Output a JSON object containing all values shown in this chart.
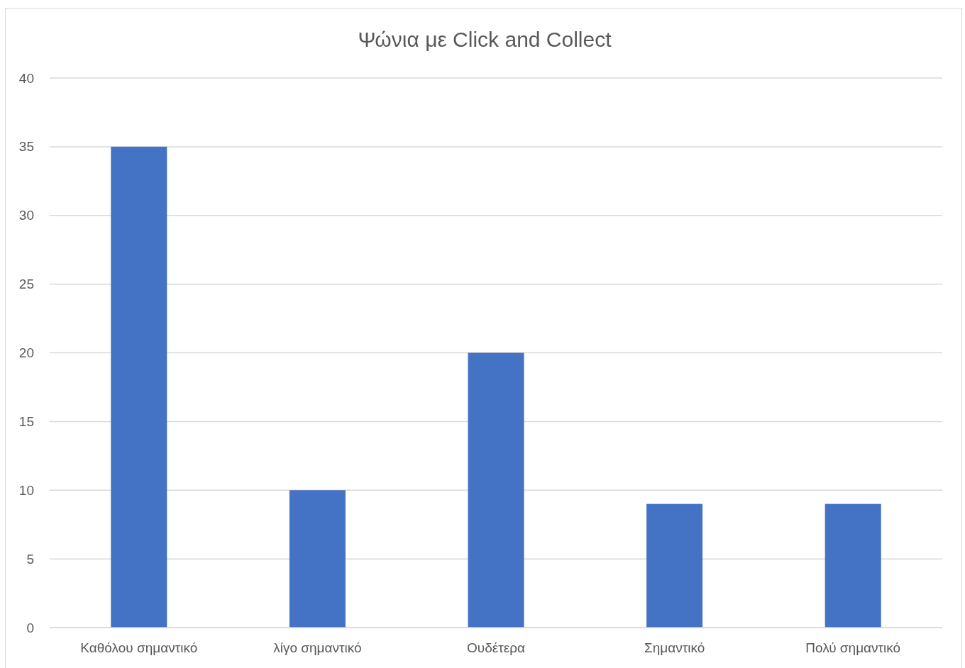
{
  "chart_data": {
    "type": "bar",
    "title": "Ψώνια με Click and Collect",
    "categories": [
      "Καθόλου σημαντικό",
      "λίγο σημαντικό",
      "Ουδέτερα",
      "Σημαντικό",
      "Πολύ σημαντικό"
    ],
    "values": [
      35,
      10,
      20,
      9,
      9
    ],
    "color": "#4472c4",
    "ylim": [
      0,
      40
    ],
    "yticks": [
      0,
      5,
      10,
      15,
      20,
      25,
      30,
      35,
      40
    ],
    "grid": "y"
  }
}
